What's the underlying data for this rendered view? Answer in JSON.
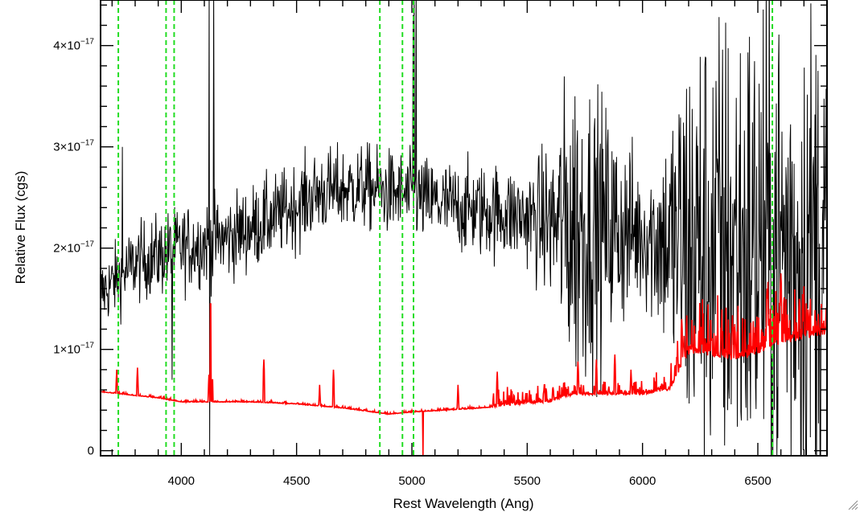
{
  "chart_data": {
    "type": "line",
    "title": "",
    "xlabel": "Rest Wavelength (Ang)",
    "ylabel": "Relative Flux (cgs)",
    "xlim": [
      3650,
      6800
    ],
    "ylim": [
      -5e-19,
      4.45e-17
    ],
    "x_ticks": [
      4000,
      4500,
      5000,
      5500,
      6000,
      6500
    ],
    "y_ticks": [
      {
        "value": 0,
        "mantissa": "0",
        "exponent": ""
      },
      {
        "value": 1e-17,
        "mantissa": "1×10",
        "exponent": "−17"
      },
      {
        "value": 2e-17,
        "mantissa": "2×10",
        "exponent": "−17"
      },
      {
        "value": 3e-17,
        "mantissa": "3×10",
        "exponent": "−17"
      },
      {
        "value": 4e-17,
        "mantissa": "4×10",
        "exponent": "−17"
      }
    ],
    "series": [
      {
        "color": "#000000",
        "style": "noisy-spectrum",
        "continuum_x": [
          3650,
          3800,
          4000,
          4200,
          4400,
          4600,
          4800,
          5000,
          5200,
          5400,
          5600,
          5800,
          6000,
          6200,
          6400,
          6600,
          6800
        ],
        "continuum_y": [
          1.55e-17,
          1.85e-17,
          2e-17,
          2.1e-17,
          2.3e-17,
          2.55e-17,
          2.6e-17,
          2.5e-17,
          2.4e-17,
          2.35e-17,
          2.25e-17,
          2.2e-17,
          2.15e-17,
          2e-17,
          2e-17,
          2e-17,
          2e-17
        ],
        "noise_x": [
          3650,
          4000,
          4500,
          5000,
          5500,
          5600,
          5700,
          6000,
          6100,
          6200,
          6500,
          6800
        ],
        "noise_sigma": [
          2.5e-18,
          3e-18,
          3e-18,
          3e-18,
          3.5e-18,
          5.5e-18,
          1.2e-17,
          5e-18,
          8e-18,
          1.6e-17,
          1.8e-17,
          1.8e-17
        ],
        "spikes": [
          {
            "x": 4120,
            "y": 4.6e-17
          },
          {
            "x": 4123,
            "y": -5e-19
          },
          {
            "x": 4140,
            "y": 4.6e-17
          },
          {
            "x": 5005,
            "y": 4.3e-17
          },
          {
            "x": 5010,
            "y": 4.6e-17
          },
          {
            "x": 5018,
            "y": 4.6e-17
          },
          {
            "x": 3745,
            "y": 3e-17
          },
          {
            "x": 3960,
            "y": 7e-18
          }
        ]
      },
      {
        "color": "#ff0000",
        "style": "sky-spectrum",
        "continuum_x": [
          3650,
          3900,
          4000,
          4300,
          4500,
          4700,
          4900,
          5000,
          5300,
          5600,
          5700,
          6000,
          6120,
          6200,
          6400,
          6500,
          6600,
          6800
        ],
        "continuum_y": [
          5.8e-18,
          5.2e-18,
          4.8e-18,
          4.8e-18,
          4.6e-18,
          4.2e-18,
          3.6e-18,
          3.8e-18,
          4.2e-18,
          4.8e-18,
          5.5e-18,
          5.5e-18,
          6e-18,
          9.5e-18,
          9e-18,
          9.5e-18,
          1.05e-17,
          1.15e-17
        ],
        "lines": [
          {
            "x": 3720,
            "y": 8e-18
          },
          {
            "x": 3810,
            "y": 8.2e-18
          },
          {
            "x": 4120,
            "y": 7.5e-18
          },
          {
            "x": 4127,
            "y": 1.5e-17
          },
          {
            "x": 4135,
            "y": 7.5e-18
          },
          {
            "x": 4358,
            "y": 9e-18
          },
          {
            "x": 4600,
            "y": 6.5e-18
          },
          {
            "x": 4660,
            "y": 8e-18
          },
          {
            "x": 5048,
            "y": -5e-19
          },
          {
            "x": 5200,
            "y": 6.5e-18
          },
          {
            "x": 5370,
            "y": 7.8e-18
          },
          {
            "x": 5575,
            "y": 7e-18
          },
          {
            "x": 5720,
            "y": 8.8e-18
          },
          {
            "x": 5800,
            "y": 9e-18
          },
          {
            "x": 5880,
            "y": 9.5e-18
          },
          {
            "x": 5950,
            "y": 8e-18
          },
          {
            "x": 6170,
            "y": 1.3e-17
          },
          {
            "x": 6300,
            "y": 1.1e-17
          },
          {
            "x": 6400,
            "y": 1.25e-17
          },
          {
            "x": 6540,
            "y": 1.6e-17
          },
          {
            "x": 6600,
            "y": 1.75e-17
          },
          {
            "x": 6680,
            "y": 1.5e-17
          }
        ]
      }
    ],
    "reference_lines": {
      "color": "#22dd22",
      "style": "dashed",
      "x": [
        3727,
        3934,
        3969,
        4861,
        4959,
        5007,
        6563
      ]
    },
    "grid": false,
    "legend": "none"
  }
}
